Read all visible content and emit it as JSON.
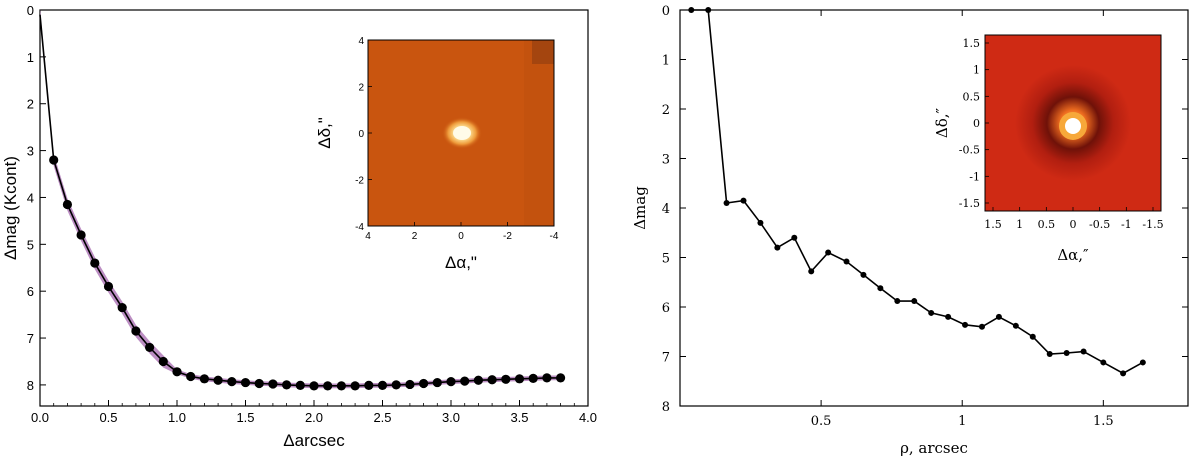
{
  "chart_data": [
    {
      "type": "line",
      "name": "left-contrast-curve",
      "xlabel": "Δarcsec",
      "ylabel": "Δmag (Kcont)",
      "xlim": [
        0.0,
        4.0
      ],
      "ylim": [
        8.45,
        0
      ],
      "xticks": [
        0.0,
        0.5,
        1.0,
        1.5,
        2.0,
        2.5,
        3.0,
        3.5,
        4.0
      ],
      "xtick_labels": [
        "0.0",
        "0.5",
        "1.0",
        "1.5",
        "2.0",
        "2.5",
        "3.0",
        "3.5",
        "4.0"
      ],
      "yticks": [
        0,
        1,
        2,
        3,
        4,
        5,
        6,
        7,
        8
      ],
      "ytick_labels": [
        "0",
        "1",
        "2",
        "3",
        "4",
        "5",
        "6",
        "7",
        "8"
      ],
      "line_color": "#000000",
      "band_color": "#b07ab8",
      "curve_start": {
        "x": 0.0,
        "y": 0.1
      },
      "x": [
        0.1,
        0.2,
        0.3,
        0.4,
        0.5,
        0.6,
        0.7,
        0.8,
        0.9,
        1.0,
        1.1,
        1.2,
        1.3,
        1.4,
        1.5,
        1.6,
        1.7,
        1.8,
        1.9,
        2.0,
        2.1,
        2.2,
        2.3,
        2.4,
        2.5,
        2.6,
        2.7,
        2.8,
        2.9,
        3.0,
        3.1,
        3.2,
        3.3,
        3.4,
        3.5,
        3.6,
        3.7,
        3.8
      ],
      "y": [
        3.2,
        4.15,
        4.8,
        5.4,
        5.9,
        6.35,
        6.85,
        7.2,
        7.5,
        7.72,
        7.82,
        7.87,
        7.9,
        7.93,
        7.95,
        7.97,
        7.98,
        8.0,
        8.01,
        8.02,
        8.02,
        8.02,
        8.02,
        8.01,
        8.01,
        8.0,
        7.99,
        7.97,
        7.95,
        7.93,
        7.92,
        7.9,
        7.89,
        7.88,
        7.87,
        7.86,
        7.85,
        7.85
      ],
      "inset": {
        "xlabel": "Δα,\"",
        "ylabel": "Δδ,\"",
        "xlim": [
          4,
          -4
        ],
        "ylim": [
          -4,
          4
        ],
        "xticks": [
          4,
          2,
          0,
          -2,
          -4
        ],
        "xtick_labels": [
          "4",
          "2",
          "0",
          "-2",
          "-4"
        ],
        "yticks": [
          4,
          2,
          0,
          -2,
          -4
        ],
        "ytick_labels": [
          "4",
          "2",
          "0",
          "-2",
          "-4"
        ],
        "background_color": "#c9550f",
        "source_color": "#fff3c0"
      }
    },
    {
      "type": "line",
      "name": "right-contrast-curve",
      "xlabel": "ρ, arcsec",
      "ylabel": "Δmag",
      "xlim": [
        0,
        1.8
      ],
      "ylim": [
        8,
        0
      ],
      "xticks": [
        0.5,
        1.0,
        1.5
      ],
      "xtick_labels": [
        "0.5",
        "1",
        "1.5"
      ],
      "yticks": [
        0,
        1,
        2,
        3,
        4,
        5,
        6,
        7,
        8
      ],
      "ytick_labels": [
        "0",
        "1",
        "2",
        "3",
        "4",
        "5",
        "6",
        "7",
        "8"
      ],
      "line_color": "#000000",
      "x": [
        0.04,
        0.1,
        0.165,
        0.225,
        0.285,
        0.345,
        0.405,
        0.465,
        0.525,
        0.59,
        0.65,
        0.71,
        0.77,
        0.83,
        0.89,
        0.95,
        1.01,
        1.07,
        1.13,
        1.19,
        1.25,
        1.31,
        1.37,
        1.43,
        1.5,
        1.57,
        1.64
      ],
      "y": [
        0.0,
        0.0,
        3.9,
        3.85,
        4.3,
        4.8,
        4.6,
        5.28,
        4.9,
        5.08,
        5.35,
        5.62,
        5.88,
        5.88,
        6.12,
        6.2,
        6.36,
        6.4,
        6.2,
        6.38,
        6.6,
        6.95,
        6.93,
        6.9,
        7.12,
        7.34,
        7.12
      ],
      "inset": {
        "xlabel": "Δα,″",
        "ylabel": "Δδ,″",
        "xlim": [
          1.65,
          -1.65
        ],
        "ylim": [
          -1.65,
          1.65
        ],
        "xticks": [
          1.5,
          1,
          0.5,
          0,
          -0.5,
          -1,
          -1.5
        ],
        "xtick_labels": [
          "1.5",
          "1",
          "0.5",
          "0",
          "-0.5",
          "-1",
          "-1.5"
        ],
        "yticks": [
          1.5,
          1,
          0.5,
          0,
          -0.5,
          -1,
          -1.5
        ],
        "ytick_labels": [
          "1.5",
          "1",
          "0.5",
          "0",
          "-0.5",
          "-1",
          "-1.5"
        ],
        "background_color": "#cf2a14",
        "source_color": "#ffffff"
      }
    }
  ]
}
